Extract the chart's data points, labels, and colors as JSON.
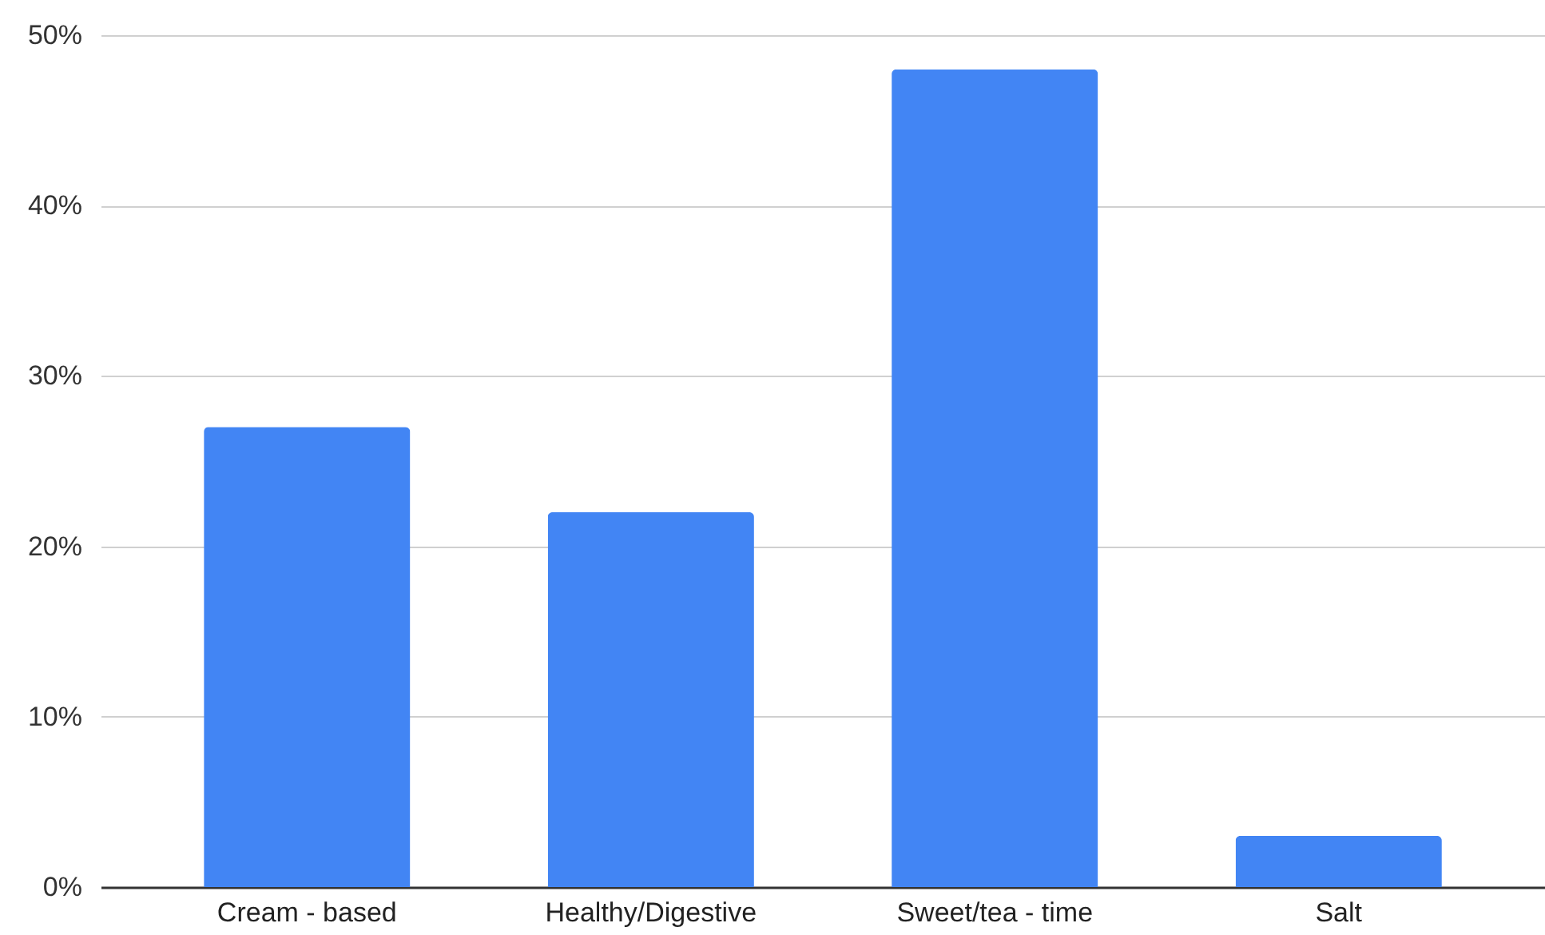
{
  "chart_data": {
    "type": "bar",
    "categories": [
      "Cream - based",
      "Healthy/Digestive",
      "Sweet/tea - time",
      "Salt"
    ],
    "values": [
      27,
      22,
      48,
      3
    ],
    "color": "#4285f4",
    "ylim": [
      0,
      50
    ],
    "yticks": [
      {
        "value": 0,
        "label": "0%"
      },
      {
        "value": 10,
        "label": "10%"
      },
      {
        "value": 20,
        "label": "20%"
      },
      {
        "value": 30,
        "label": "30%"
      },
      {
        "value": 40,
        "label": "40%"
      },
      {
        "value": 50,
        "label": "50%"
      }
    ],
    "grid": "y"
  }
}
